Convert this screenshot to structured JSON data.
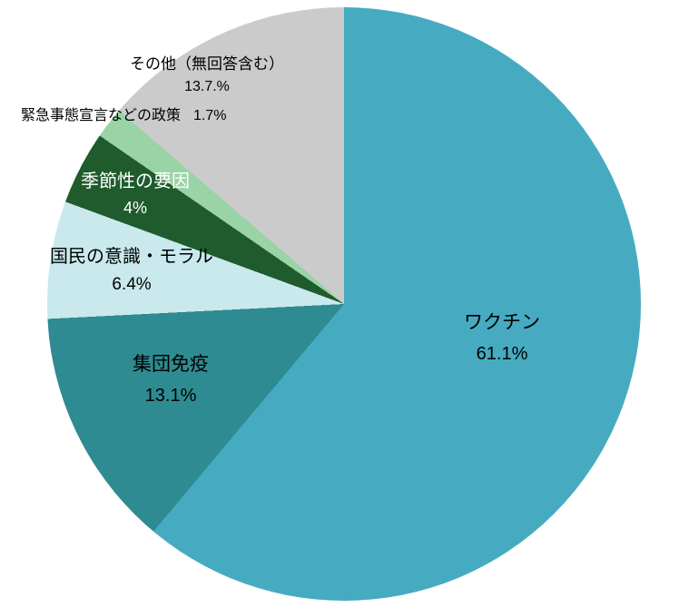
{
  "chart_data": {
    "type": "pie",
    "title": "",
    "background": "#ffffff",
    "start_angle_deg": 0,
    "direction": "clockwise",
    "legend": "none",
    "slices": [
      {
        "name": "ワクチン",
        "value": 61.1,
        "value_label": "61.1%",
        "color": "#46abc1",
        "label_color": "#000000",
        "label_placement": "inside"
      },
      {
        "name": "集団免疫",
        "value": 13.1,
        "value_label": "13.1%",
        "color": "#2e8b91",
        "label_color": "#000000",
        "label_placement": "inside"
      },
      {
        "name": "国民の意識・モラル",
        "value": 6.4,
        "value_label": "6.4%",
        "color": "#c9e9ed",
        "label_color": "#000000",
        "label_placement": "inside"
      },
      {
        "name": "季節性の要因",
        "value": 4,
        "value_label": "4%",
        "color": "#1f5b2c",
        "label_color": "#ffffff",
        "label_placement": "inside"
      },
      {
        "name": "緊急事態宣言などの政策",
        "value": 1.7,
        "value_label": "1.7%",
        "color": "#9ad3a5",
        "label_color": "#000000",
        "label_placement": "outside"
      },
      {
        "name": "その他（無回答含む）",
        "value": 13.7,
        "value_label": "13.7.%",
        "color": "#cbcbcb",
        "label_color": "#000000",
        "label_placement": "inside"
      }
    ]
  }
}
